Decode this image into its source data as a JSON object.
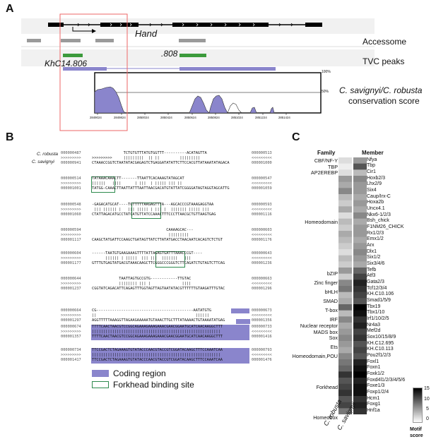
{
  "panels": {
    "a": "A",
    "b": "B",
    "c": "C"
  },
  "panel_a": {
    "gene_label": "Hand",
    "tracks": {
      "accessome": "Accessome",
      "tvc": "TVC peaks"
    },
    "peak_labels": {
      "khc": "KhC14.806",
      "p808": ".808"
    },
    "conservation_title_1": "C. savignyi/C. robusta",
    "conservation_title_2": "conservation score",
    "y_top": "100%",
    "y_bottom": "50%",
    "x_ticks": [
      "2849024",
      "2849824",
      "2850024",
      "2850424",
      "2850624",
      "2850824",
      "2851024",
      "2851224",
      "2851424"
    ]
  },
  "panel_b": {
    "species": [
      "C. robusta",
      "C. savignyi"
    ],
    "blocks": [
      {
        "l1": "000000487",
        "l2": "000000941",
        "r1": "000000513",
        "r2": "000001000",
        "top": "              TCTGTGTTTATGTGGTTT----------ACATAGTTA",
        "mid": ">>>>>>>>>     |||||||||  || ||         |||||||||",
        "bot": "CTAAACCGGTCTAATATACGAGAGTCTGAGGATATATTCTTCCACGTTATAAATATAGACA"
      },
      {
        "l1": "000000514",
        "l2": "000001001",
        "r1": "000000547",
        "r2": "000001059",
        "top": "TATAAACAAACTT-------TTAATTCACAAAGTATAGCAT",
        "mid": "||||||   ||||      | |||  | ||||| ||| ||",
        "bot": "TATGG-CAAACTTAATTATTTAATTAACGACATGTATTATCGGGGATAGTAGGTAGCATTG"
      },
      {
        "l1": "000000548",
        "l2": "000001060",
        "r1": "000000593",
        "r2": "000001116",
        "top": "-GAGACATGCAT----TGTTTTTAAGAGTTTA---AGCACCCGTAAAGAGGTAA",
        "mid": " ||| |||||| |   ||| ||||| | ||| |  ||||||| ||||| |||",
        "bot": "CTATTAGACATGCCTATCATGTTATCCAAACTTTCCCTTAACGCTGTTAAGTGAG"
      },
      {
        "l1": "000000594",
        "l2": "000001117",
        "r1": "000000603",
        "r2": "000001176",
        "top": "                                 CAAAAGCAC---",
        "mid": "                                  |||||||||",
        "bot": "CAAGCTATGATTCCAAGCTGATAGTTATCTTATATGACCTAACAATCACAGTCTCTGT"
      },
      {
        "l1": "000000604",
        "l2": "000001177",
        "r1": "000000643",
        "r2": "000001236",
        "top": "------TAATGTGAAGAAAGTTTTATTAGAGTGATTTAAACCCGT----",
        "mid": "      |||||| | |||||  ||| |||  |||||||   |||",
        "bot": "GTTTGTGAGTATGACGTAAACAAGCTTCGGGCCCGGGTCTTCAGATCTGTAGTCTTCAG"
      },
      {
        "l1": "000000644",
        "l2": "000001237",
        "r1": "000000663",
        "r2": "000001296",
        "top": "            TAATTAGTGCCGTG------------TTGTAC",
        "mid": "            |||||||| ||| |              ||||",
        "bot": "CGGTATCAGACATTCAGAGTTTGGTAGTTAGTAATATACGTTTTTTGTAAGATTTGTAC"
      },
      {
        "l1": "000000664",
        "l2": "000001297",
        "r1": "000000673",
        "r2": "000001356",
        "top": "CG-------------------------------------------AATATGTG",
        "mid": "||                                            ||||||",
        "bot": "AGGTTTTTAAAGGTTAGAAGAAAAATGTAAACTTGCTTTATAAAACTGTAAAATATGAG"
      },
      {
        "l1": "000000674",
        "l2": "000001357",
        "r1": "000000733",
        "r2": "000001416",
        "top": "TTTTCAACTAACGTCCGGCAGAAAGAAAGAAACGAACGGAATGCATCAACAAGGCTTT",
        "mid": "|||||||||||||||||||||||||||||||||||||||||||||||||||||||||",
        "bot": "TTTTCAACTAACGTCCGGCAGAAAGAAAGAAACGAACGGAATGCATCAACAAGGCTTT"
      },
      {
        "l1": "000000734",
        "l2": "000001417",
        "r1": "000000793",
        "r2": "000001476",
        "top": "TTCCGACTCTAGAAAGTGTATACCCAACGTACCGTCGGATACAAGCTTTCCAAATCAA",
        "mid": "|||||||||||||||||||||||||||||||||||||||||||||||||||||||||",
        "bot": "TTCCGACTCTAGAAAGTGTATACCCAACGTACCGTCGGATACAAGCTTTCCAAATCAA"
      }
    ],
    "legend": {
      "coding": "Coding region",
      "forkhead": "Forkhead binding site"
    },
    "colors": {
      "coding": "#8a85cc",
      "forkhead": "#2e8a4e"
    }
  },
  "panel_c": {
    "col_headers": {
      "family": "Family",
      "member": "Member"
    },
    "x_labels": [
      "C. robusta",
      "C. savignyi"
    ],
    "colorbar": {
      "title_1": "Motif",
      "title_2": "score",
      "ticks": [
        "15",
        "10",
        "5",
        "0"
      ]
    },
    "families": [
      {
        "name": "CBF/NF-Y",
        "start": 0,
        "count": 1
      },
      {
        "name": "TBP",
        "start": 1,
        "count": 1
      },
      {
        "name": "AP2EREBP",
        "start": 2,
        "count": 1
      },
      {
        "name": "Homeodomain",
        "start": 3,
        "count": 15
      },
      {
        "name": "bZIP",
        "start": 18,
        "count": 2
      },
      {
        "name": "Zinc finger",
        "start": 20,
        "count": 1
      },
      {
        "name": "bHLH",
        "start": 21,
        "count": 2
      },
      {
        "name": "SMAD",
        "start": 23,
        "count": 1
      },
      {
        "name": "T-box",
        "start": 24,
        "count": 2
      },
      {
        "name": "IRF",
        "start": 26,
        "count": 1
      },
      {
        "name": "Nuclear receptor",
        "start": 27,
        "count": 1
      },
      {
        "name": "MADS box",
        "start": 28,
        "count": 1
      },
      {
        "name": "Sox",
        "start": 29,
        "count": 1
      },
      {
        "name": "Ets",
        "start": 30,
        "count": 2
      },
      {
        "name": "Homeodomain,POU",
        "start": 32,
        "count": 1
      },
      {
        "name": "Forkhead",
        "start": 33,
        "count": 9
      },
      {
        "name": "Homeobox",
        "start": 42,
        "count": 1
      }
    ],
    "members": [
      "Nfya",
      "Tbp",
      "Cir1",
      "Hoxb2/3",
      "Lhx2/9",
      "Six4",
      "Caup/Irx-C",
      "Hoxa2b",
      "Uncx4.1",
      "Nkx6-1/2/3",
      "Bsh_chick",
      "F1NM26_CHICK",
      "Rx1/2/3",
      "Emx1/2",
      "Arx",
      "Dlx1",
      "Six1/2",
      "Six3/4/6",
      "Tefb",
      "Atf3",
      "Gata2/3",
      "Tcf12/3/4",
      "KH.C10.106",
      "Smad1/5/9",
      "Tbx19",
      "Tbx1/10",
      "Irf1/10/2/5",
      "Nr4a3",
      "Mef2d",
      "Sox10/15/8/9",
      "KH.C12.695",
      "KH.C10.113",
      "Pou2f1/2/3",
      "Foxl1",
      "Foxn1",
      "Foxk1/2",
      "Foxd4l1/2/3/4/5/6",
      "Foxe1/3",
      "Foxp1/2/4",
      "Hcm1",
      "Foxg1",
      "Hnf1a"
    ],
    "scores_robusta": [
      2,
      1,
      2,
      6,
      5,
      7,
      4,
      3,
      5,
      2,
      4,
      3,
      5,
      4,
      3,
      2,
      4,
      3,
      6,
      3,
      7,
      8,
      4,
      5,
      9,
      4,
      7,
      5,
      6,
      7,
      6,
      5,
      7,
      8,
      9,
      12,
      10,
      11,
      12,
      10,
      11,
      8
    ],
    "scores_savignyi": [
      6,
      10,
      4,
      7,
      6,
      6,
      5,
      6,
      5,
      7,
      5,
      6,
      6,
      5,
      6,
      7,
      6,
      5,
      9,
      11,
      13,
      12,
      11,
      10,
      15,
      14,
      12,
      13,
      11,
      12,
      10,
      11,
      10,
      13,
      14,
      15,
      13,
      14,
      14,
      12,
      13,
      12
    ]
  }
}
